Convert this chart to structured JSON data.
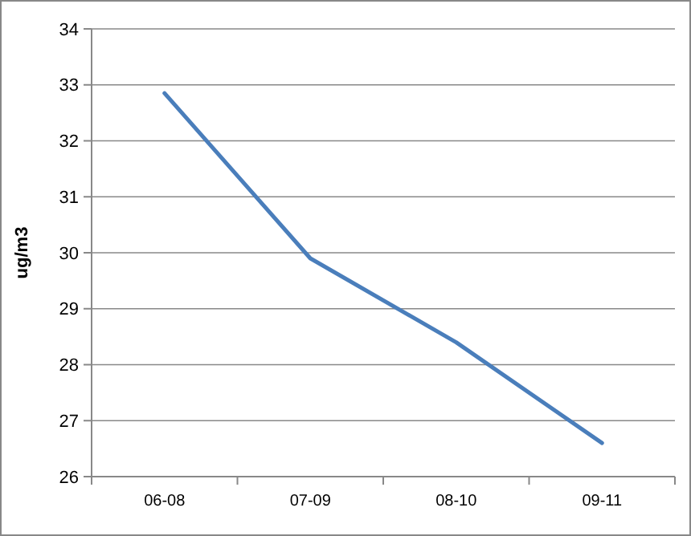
{
  "chart_data": {
    "type": "line",
    "ylabel": "ug/m3",
    "categories": [
      "06-08",
      "07-09",
      "08-10",
      "09-11"
    ],
    "series": [
      {
        "color": "#4a7ebb",
        "values": [
          32.85,
          29.9,
          28.4,
          26.6
        ]
      }
    ],
    "ylim": [
      26,
      34
    ],
    "yticks": [
      26,
      27,
      28,
      29,
      30,
      31,
      32,
      33,
      34
    ],
    "grid": "y",
    "marker": "none",
    "line_style": "solid"
  }
}
